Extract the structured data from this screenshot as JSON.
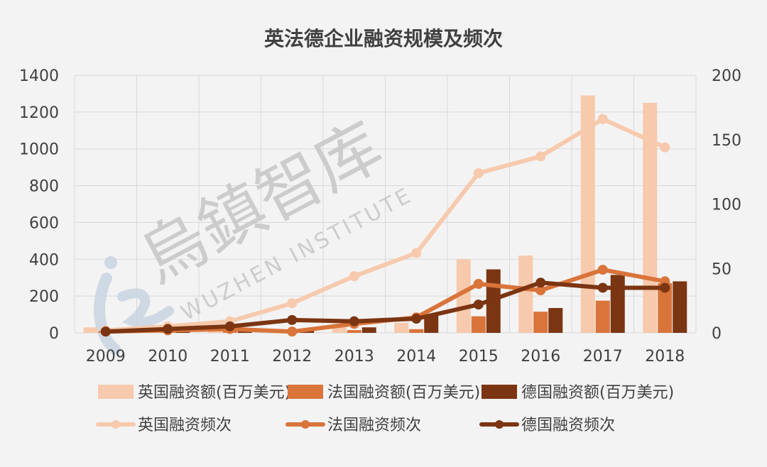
{
  "colors": {
    "background": "#f3f3f3",
    "grid": "#d9d9d9",
    "uk": "#f7c9ad",
    "fr": "#d9743a",
    "de": "#7b3512",
    "watermark": "#c8c8c8",
    "watermark_logo": "#c9d5e2"
  },
  "watermark": {
    "logo_icon": "wuzhen-logo-icon",
    "cn": "烏鎮智库",
    "en": "WUZHEN INSTITUTE"
  },
  "chart_data": {
    "type": "bar",
    "title": "英法德企业融资规模及频次",
    "categories": [
      "2009",
      "2010",
      "2011",
      "2012",
      "2013",
      "2014",
      "2015",
      "2016",
      "2017",
      "2018"
    ],
    "y_left": {
      "ticks": [
        "0",
        "200",
        "400",
        "600",
        "800",
        "1000",
        "1200",
        "1400"
      ],
      "ylim": [
        0,
        1400
      ]
    },
    "y_right": {
      "ticks": [
        "0",
        "50",
        "100",
        "150",
        "200"
      ],
      "ylim": [
        0,
        200
      ]
    },
    "grid": true,
    "legend_position": "bottom",
    "bar_series": [
      {
        "name": "英国融资额(百万美元)",
        "color_key": "uk",
        "values": [
          30,
          15,
          30,
          10,
          50,
          55,
          400,
          420,
          1290,
          1250
        ]
      },
      {
        "name": "法国融资额(百万美元)",
        "color_key": "fr",
        "values": [
          10,
          5,
          10,
          5,
          15,
          20,
          90,
          115,
          175,
          270
        ]
      },
      {
        "name": "德国融资额(百万美元)",
        "color_key": "de",
        "values": [
          5,
          20,
          10,
          15,
          30,
          100,
          345,
          135,
          315,
          280
        ]
      }
    ],
    "line_series": [
      {
        "name": "英国融资频次",
        "color_key": "uk",
        "axis": "right",
        "values": [
          2,
          5,
          9,
          23,
          44,
          62,
          124,
          137,
          166,
          144
        ]
      },
      {
        "name": "法国融资频次",
        "color_key": "fr",
        "axis": "right",
        "values": [
          1,
          2,
          3,
          1,
          7,
          12,
          38,
          33,
          49,
          40
        ]
      },
      {
        "name": "德国融资频次",
        "color_key": "de",
        "axis": "right",
        "values": [
          1,
          3,
          5,
          10,
          9,
          11,
          22,
          39,
          35,
          35
        ]
      }
    ]
  }
}
